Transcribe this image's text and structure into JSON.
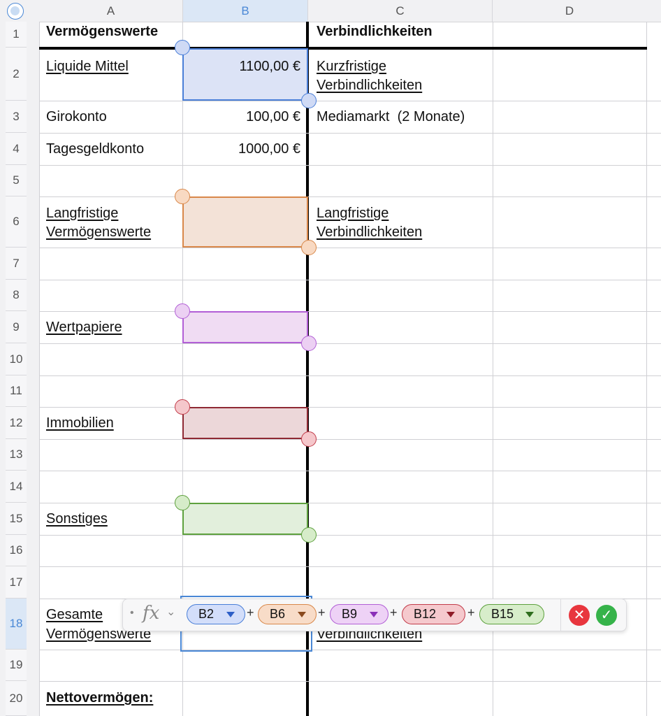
{
  "columns": [
    "A",
    "B",
    "C",
    "D"
  ],
  "rows": [
    "1",
    "2",
    "3",
    "4",
    "5",
    "6",
    "7",
    "8",
    "9",
    "10",
    "11",
    "12",
    "13",
    "14",
    "15",
    "16",
    "17",
    "18",
    "19",
    "20"
  ],
  "cells": {
    "A1": "Vermögenswerte",
    "C1": "Verbindlichkeiten",
    "A2": "Liquide Mittel",
    "B2": "1100,00 €",
    "C2_l1": "Kurzfristige",
    "C2_l2": "Verbindlichkeiten",
    "A3": "Girokonto",
    "B3": "100,00 €",
    "C3": "Mediamarkt  (2 Monate)",
    "A4": "Tagesgeldkonto",
    "B4": "1000,00 €",
    "A6_l1": "Langfristige",
    "A6_l2": "Vermögenswerte",
    "C6_l1": "Langfristige",
    "C6_l2": "Verbindlichkeiten",
    "A9": "Wertpapiere",
    "A12": "Immobilien",
    "A15": "Sonstiges",
    "A18_l1": "Gesamte",
    "A18_l2": "Vermögenswerte",
    "C18_l2": "Verbindlichkeiten",
    "A20": "Nettovermögen:"
  },
  "formula_bar": {
    "fx_label": "fx",
    "bullet": "•",
    "chevron": "⌄",
    "tokens": [
      {
        "label": "B2",
        "color": "#4a7fd8"
      },
      {
        "label": "B6",
        "color": "#d9884a"
      },
      {
        "label": "B9",
        "color": "#b25fd6"
      },
      {
        "label": "B12",
        "color": "#c23c4a"
      },
      {
        "label": "B15",
        "color": "#5ea13e"
      }
    ],
    "operator": "+",
    "cancel_icon": "✕",
    "confirm_icon": "✓"
  },
  "colors": {
    "cancel": "#e8363e",
    "confirm": "#36b34a",
    "selection": "#4a88d6"
  }
}
